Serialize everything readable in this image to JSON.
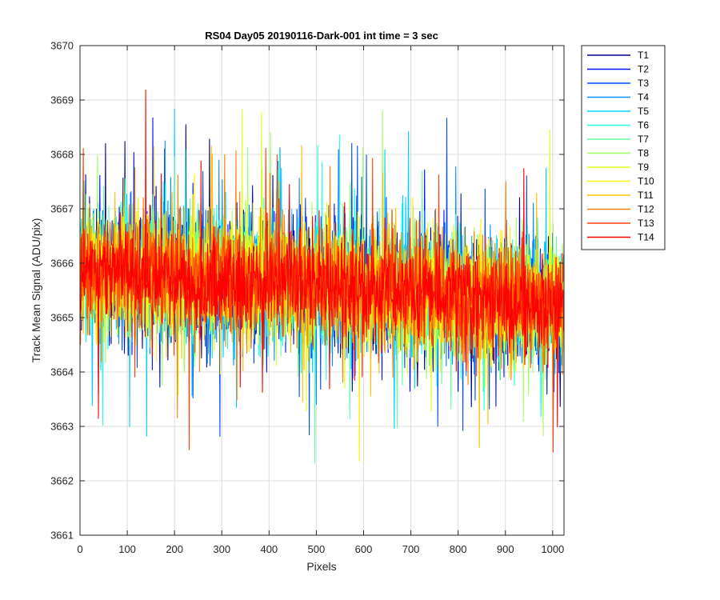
{
  "chart_data": {
    "type": "line",
    "title": "RS04 Day05 20190116-Dark-001 int time = 3 sec",
    "xlabel": "Pixels",
    "ylabel": "Track Mean Signal (ADU/pix)",
    "xlim": [
      0,
      1024
    ],
    "ylim": [
      3661,
      3670
    ],
    "x_ticks": [
      "0",
      "100",
      "200",
      "300",
      "400",
      "500",
      "600",
      "700",
      "800",
      "900",
      "1000"
    ],
    "y_ticks": [
      "3661",
      "3662",
      "3663",
      "3664",
      "3665",
      "3666",
      "3667",
      "3668",
      "3669",
      "3670"
    ],
    "grid": true,
    "legend_position": "outside-right",
    "n_points": 1024,
    "series": [
      {
        "name": "T1",
        "color": "#00008F",
        "center": [
          3665.9,
          3665.6,
          3665.2
        ],
        "spread": 1.05
      },
      {
        "name": "T2",
        "color": "#0010FF",
        "center": [
          3665.9,
          3665.6,
          3665.2
        ],
        "spread": 1.05
      },
      {
        "name": "T3",
        "color": "#0050FF",
        "center": [
          3665.9,
          3665.6,
          3665.2
        ],
        "spread": 1.0
      },
      {
        "name": "T4",
        "color": "#0090FF",
        "center": [
          3665.9,
          3665.6,
          3665.2
        ],
        "spread": 1.0
      },
      {
        "name": "T5",
        "color": "#00CFFF",
        "center": [
          3665.9,
          3665.6,
          3665.2
        ],
        "spread": 1.0
      },
      {
        "name": "T6",
        "color": "#20FFDF",
        "center": [
          3665.9,
          3665.6,
          3665.2
        ],
        "spread": 1.0
      },
      {
        "name": "T7",
        "color": "#60FF9F",
        "center": [
          3665.9,
          3665.6,
          3665.2
        ],
        "spread": 1.0
      },
      {
        "name": "T8",
        "color": "#9FFF60",
        "center": [
          3665.9,
          3665.6,
          3665.2
        ],
        "spread": 0.95
      },
      {
        "name": "T9",
        "color": "#DFFF20",
        "center": [
          3665.9,
          3665.6,
          3665.2
        ],
        "spread": 0.95
      },
      {
        "name": "T10",
        "color": "#FFEF00",
        "center": [
          3665.9,
          3665.6,
          3665.2
        ],
        "spread": 0.95
      },
      {
        "name": "T11",
        "color": "#FFBF00",
        "center": [
          3665.9,
          3665.6,
          3665.2
        ],
        "spread": 0.9
      },
      {
        "name": "T12",
        "color": "#FF8000",
        "center": [
          3665.9,
          3665.6,
          3665.2
        ],
        "spread": 0.9
      },
      {
        "name": "T13",
        "color": "#FF4000",
        "center": [
          3665.9,
          3665.6,
          3665.2
        ],
        "spread": 0.85
      },
      {
        "name": "T14",
        "color": "#FF0000",
        "center": [
          3665.9,
          3665.6,
          3665.2
        ],
        "spread": 0.8
      }
    ]
  }
}
